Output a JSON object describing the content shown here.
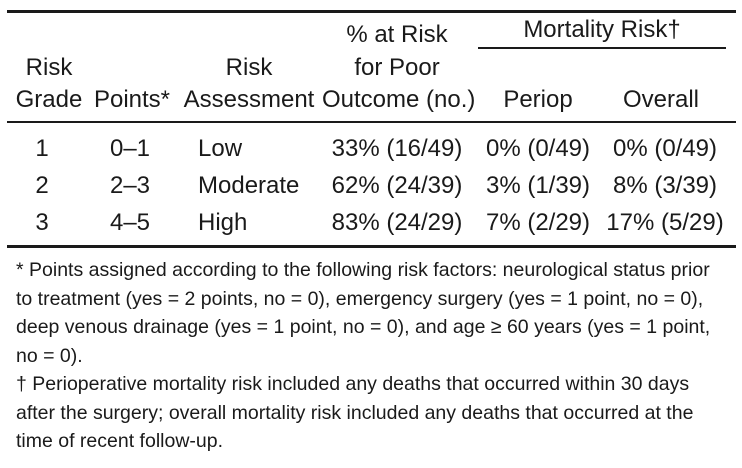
{
  "table": {
    "headers": {
      "risk_grade": [
        "Risk",
        "Grade"
      ],
      "points": "Points*",
      "risk_assessment": [
        "Risk",
        "Assessment"
      ],
      "pct_risk": [
        "% at Risk",
        "for Poor",
        "Outcome (no.)"
      ],
      "mortality_group": "Mortality Risk†",
      "periop": "Periop",
      "overall": "Overall"
    },
    "rows": [
      {
        "grade": "1",
        "points": "0–1",
        "assessment": "Low",
        "pct": "33% (16/49)",
        "periop": "0% (0/49)",
        "overall": "0% (0/49)"
      },
      {
        "grade": "2",
        "points": "2–3",
        "assessment": "Moderate",
        "pct": "62% (24/39)",
        "periop": "3% (1/39)",
        "overall": "8% (3/39)"
      },
      {
        "grade": "3",
        "points": "4–5",
        "assessment": "High",
        "pct": "83% (24/29)",
        "periop": "7% (2/29)",
        "overall": "17% (5/29)"
      }
    ]
  },
  "footnotes": [
    "* Points assigned according to the following risk factors: neurological status prior to treatment (yes = 2 points, no = 0), emergency surgery (yes = 1 point, no = 0), deep venous drainage (yes = 1 point, no = 0), and age ≥ 60 years (yes = 1 point, no = 0).",
    "† Perioperative mortality risk included any deaths that occurred within 30 days after the surgery; overall mortality risk included any deaths that occurred at the time of recent follow-up."
  ]
}
